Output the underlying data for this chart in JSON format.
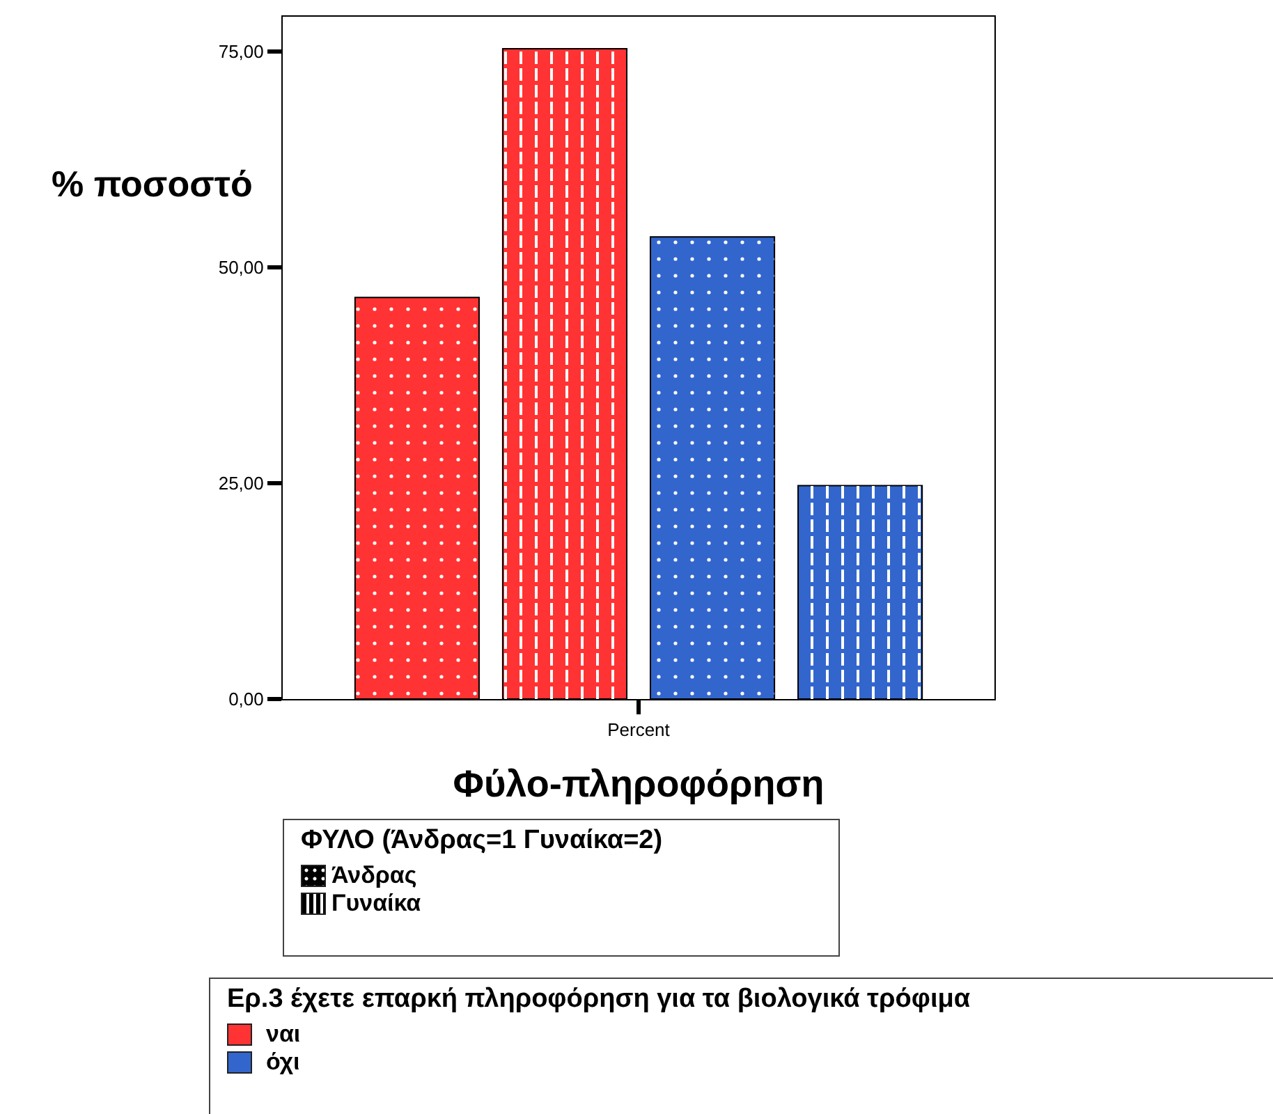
{
  "chart_data": {
    "type": "bar",
    "categories": [
      "Percent"
    ],
    "ylabel": "% ποσοστό",
    "xlabel": "Φύλο-πληροφόρηση",
    "ylim": [
      0,
      79
    ],
    "yticks": [
      {
        "value": 0,
        "label": "0,00"
      },
      {
        "value": 25,
        "label": "25,00"
      },
      {
        "value": 50,
        "label": "50,00"
      },
      {
        "value": 75,
        "label": "75,00"
      }
    ],
    "grid": false,
    "legend": "bottom",
    "legend_title": "ΦΥΛΟ  (Άνδρας=1  Γυναίκα=2)",
    "series": [
      {
        "name": "Άνδρας",
        "color": "#ff3333",
        "values": [
          46.5
        ]
      },
      {
        "name": "Γυναίκα",
        "color": "#ff3333",
        "values": [
          75.3
        ]
      },
      {
        "color": "#3366cc",
        "values": [
          53.5
        ]
      },
      {
        "color": "#3366cc",
        "values": [
          24.7
        ]
      }
    ],
    "annotations": [
      "Ερ.3 έχετε επαρκή πληροφόρηση για τα βιολογικά τρόφιμα",
      "ναι",
      "όχι"
    ]
  }
}
